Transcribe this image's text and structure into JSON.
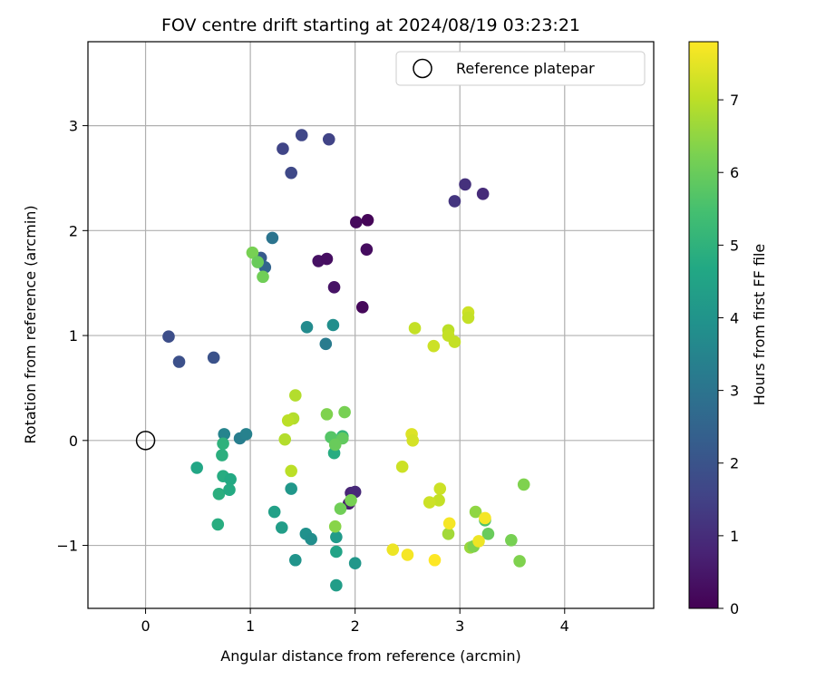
{
  "chart_data": {
    "type": "scatter",
    "title": "FOV centre drift starting at 2024/08/19 03:23:21",
    "xlabel": "Angular distance from reference (arcmin)",
    "ylabel": "Rotation from reference (arcmin)",
    "xlim": [
      -0.55,
      4.85
    ],
    "ylim": [
      -1.6,
      3.8
    ],
    "xticks": [
      0,
      1,
      2,
      3,
      4
    ],
    "yticks": [
      -1,
      0,
      1,
      2,
      3
    ],
    "xtick_labels": [
      "0",
      "1",
      "2",
      "3",
      "4"
    ],
    "ytick_labels": [
      "−1",
      "0",
      "1",
      "2",
      "3"
    ],
    "grid": true,
    "legend": {
      "position": "top-right",
      "label": "Reference platepar"
    },
    "reference_point": {
      "x": 0,
      "y": 0
    },
    "colorbar": {
      "label": "Hours from first FF file",
      "colormap": "viridis",
      "range": [
        0,
        7.8
      ],
      "ticks": [
        0,
        1,
        2,
        3,
        4,
        5,
        6,
        7
      ],
      "tick_labels": [
        "0",
        "1",
        "2",
        "3",
        "4",
        "5",
        "6",
        "7"
      ]
    },
    "points": [
      {
        "x": 2.01,
        "y": 2.08,
        "c": 0.2
      },
      {
        "x": 2.12,
        "y": 2.1,
        "c": 0.1
      },
      {
        "x": 2.11,
        "y": 1.82,
        "c": 0.25
      },
      {
        "x": 1.65,
        "y": 1.71,
        "c": 0.35
      },
      {
        "x": 1.73,
        "y": 1.73,
        "c": 0.3
      },
      {
        "x": 1.8,
        "y": 1.46,
        "c": 0.4
      },
      {
        "x": 2.07,
        "y": 1.27,
        "c": 0.15
      },
      {
        "x": 1.96,
        "y": -0.5,
        "c": 0.8
      },
      {
        "x": 2.0,
        "y": -0.49,
        "c": 0.9
      },
      {
        "x": 1.94,
        "y": -0.6,
        "c": 0.6
      },
      {
        "x": 3.05,
        "y": 2.44,
        "c": 1.1
      },
      {
        "x": 3.22,
        "y": 2.35,
        "c": 0.95
      },
      {
        "x": 2.95,
        "y": 2.28,
        "c": 1.2
      },
      {
        "x": 1.31,
        "y": 2.78,
        "c": 1.6
      },
      {
        "x": 1.49,
        "y": 2.91,
        "c": 1.65
      },
      {
        "x": 1.75,
        "y": 2.87,
        "c": 1.55
      },
      {
        "x": 1.39,
        "y": 2.55,
        "c": 1.7
      },
      {
        "x": 0.22,
        "y": 0.99,
        "c": 1.85
      },
      {
        "x": 0.32,
        "y": 0.75,
        "c": 1.9
      },
      {
        "x": 0.65,
        "y": 0.79,
        "c": 1.95
      },
      {
        "x": 1.1,
        "y": 1.74,
        "c": 2.2
      },
      {
        "x": 1.14,
        "y": 1.65,
        "c": 2.5
      },
      {
        "x": 1.21,
        "y": 1.93,
        "c": 3.0
      },
      {
        "x": 1.72,
        "y": 0.92,
        "c": 3.2
      },
      {
        "x": 1.54,
        "y": 1.08,
        "c": 3.7
      },
      {
        "x": 1.79,
        "y": 1.1,
        "c": 3.8
      },
      {
        "x": 0.75,
        "y": 0.06,
        "c": 3.5
      },
      {
        "x": 0.9,
        "y": 0.02,
        "c": 3.3
      },
      {
        "x": 0.96,
        "y": 0.06,
        "c": 3.4
      },
      {
        "x": 0.49,
        "y": -0.26,
        "c": 4.6
      },
      {
        "x": 0.74,
        "y": -0.34,
        "c": 4.8
      },
      {
        "x": 0.81,
        "y": -0.37,
        "c": 4.7
      },
      {
        "x": 0.7,
        "y": -0.51,
        "c": 4.9
      },
      {
        "x": 0.8,
        "y": -0.47,
        "c": 4.75
      },
      {
        "x": 0.69,
        "y": -0.8,
        "c": 4.85
      },
      {
        "x": 0.73,
        "y": -0.14,
        "c": 4.9
      },
      {
        "x": 0.74,
        "y": -0.03,
        "c": 5.0
      },
      {
        "x": 1.23,
        "y": -0.68,
        "c": 4.4
      },
      {
        "x": 1.3,
        "y": -0.83,
        "c": 4.3
      },
      {
        "x": 1.39,
        "y": -0.46,
        "c": 4.1
      },
      {
        "x": 1.53,
        "y": -0.89,
        "c": 3.9
      },
      {
        "x": 1.58,
        "y": -0.94,
        "c": 3.8
      },
      {
        "x": 1.43,
        "y": -1.14,
        "c": 4.0
      },
      {
        "x": 1.82,
        "y": -0.92,
        "c": 4.2
      },
      {
        "x": 1.82,
        "y": -1.06,
        "c": 4.5
      },
      {
        "x": 1.82,
        "y": -1.38,
        "c": 4.3
      },
      {
        "x": 2.0,
        "y": -1.17,
        "c": 4.1
      },
      {
        "x": 1.8,
        "y": -0.12,
        "c": 4.8
      },
      {
        "x": 1.88,
        "y": 0.04,
        "c": 5.1
      },
      {
        "x": 1.02,
        "y": 1.79,
        "c": 6.2
      },
      {
        "x": 1.07,
        "y": 1.7,
        "c": 6.0
      },
      {
        "x": 1.12,
        "y": 1.56,
        "c": 6.1
      },
      {
        "x": 1.43,
        "y": 0.43,
        "c": 6.9
      },
      {
        "x": 1.41,
        "y": 0.21,
        "c": 6.9
      },
      {
        "x": 1.36,
        "y": 0.19,
        "c": 7.0
      },
      {
        "x": 1.33,
        "y": 0.01,
        "c": 6.9
      },
      {
        "x": 1.39,
        "y": -0.29,
        "c": 7.0
      },
      {
        "x": 1.73,
        "y": 0.25,
        "c": 6.3
      },
      {
        "x": 1.9,
        "y": 0.27,
        "c": 6.2
      },
      {
        "x": 1.77,
        "y": 0.03,
        "c": 5.7
      },
      {
        "x": 1.88,
        "y": 0.02,
        "c": 5.9
      },
      {
        "x": 1.81,
        "y": -0.04,
        "c": 6.0
      },
      {
        "x": 1.86,
        "y": -0.65,
        "c": 6.1
      },
      {
        "x": 1.96,
        "y": -0.57,
        "c": 6.2
      },
      {
        "x": 1.81,
        "y": -0.82,
        "c": 6.4
      },
      {
        "x": 2.57,
        "y": 1.07,
        "c": 7.1
      },
      {
        "x": 2.89,
        "y": 1.05,
        "c": 7.0
      },
      {
        "x": 2.89,
        "y": 1.0,
        "c": 7.1
      },
      {
        "x": 2.75,
        "y": 0.9,
        "c": 7.2
      },
      {
        "x": 2.95,
        "y": 0.94,
        "c": 7.1
      },
      {
        "x": 3.08,
        "y": 1.22,
        "c": 7.2
      },
      {
        "x": 3.08,
        "y": 1.17,
        "c": 7.1
      },
      {
        "x": 2.54,
        "y": 0.06,
        "c": 7.4
      },
      {
        "x": 2.55,
        "y": 0.0,
        "c": 7.3
      },
      {
        "x": 2.45,
        "y": -0.25,
        "c": 7.2
      },
      {
        "x": 2.81,
        "y": -0.46,
        "c": 7.2
      },
      {
        "x": 2.8,
        "y": -0.57,
        "c": 7.1
      },
      {
        "x": 2.71,
        "y": -0.59,
        "c": 7.2
      },
      {
        "x": 2.89,
        "y": -0.89,
        "c": 6.7
      },
      {
        "x": 3.1,
        "y": -1.02,
        "c": 6.6
      },
      {
        "x": 3.15,
        "y": -0.68,
        "c": 6.5
      },
      {
        "x": 3.13,
        "y": -1.01,
        "c": 6.3
      },
      {
        "x": 3.24,
        "y": -0.76,
        "c": 5.6
      },
      {
        "x": 3.27,
        "y": -0.89,
        "c": 6.0
      },
      {
        "x": 3.49,
        "y": -0.95,
        "c": 6.2
      },
      {
        "x": 3.57,
        "y": -1.15,
        "c": 6.3
      },
      {
        "x": 3.61,
        "y": -0.42,
        "c": 6.3
      },
      {
        "x": 2.9,
        "y": -0.79,
        "c": 7.7
      },
      {
        "x": 3.18,
        "y": -0.96,
        "c": 7.6
      },
      {
        "x": 3.24,
        "y": -0.74,
        "c": 7.7
      },
      {
        "x": 2.36,
        "y": -1.04,
        "c": 7.6
      },
      {
        "x": 2.5,
        "y": -1.09,
        "c": 7.7
      },
      {
        "x": 2.76,
        "y": -1.14,
        "c": 7.8
      }
    ]
  }
}
